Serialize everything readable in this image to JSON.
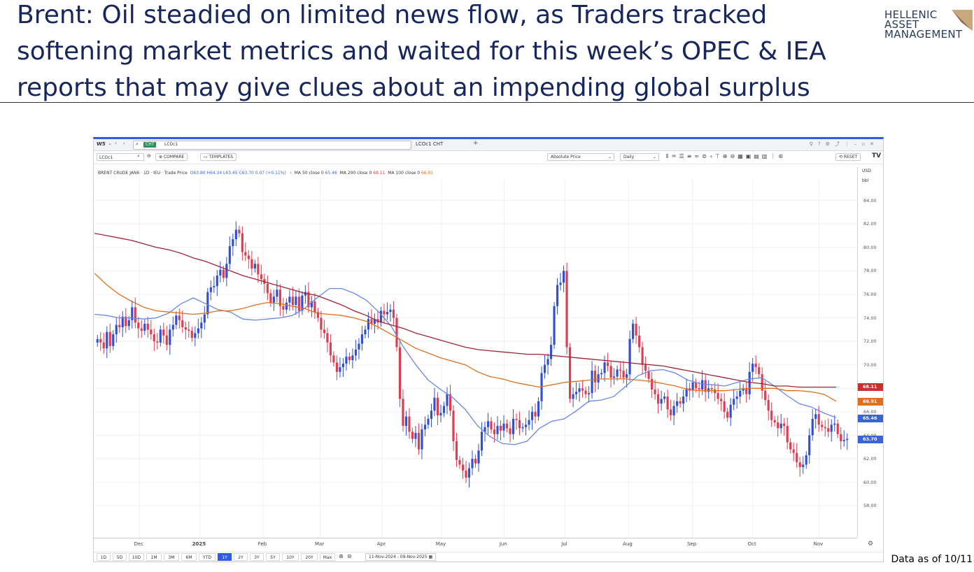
{
  "slide": {
    "title_line1": "Brent: Oil steadied on limited news flow, as Traders tracked",
    "title_line2": "softening market metrics and waited for this week’s OPEC & IEA",
    "title_line3": "reports that may give clues about an impending global surplus",
    "logo_line1": "HELLENIC",
    "logo_line2": "ASSET",
    "logo_line3": "MANAGEMENT",
    "footnote": "Data as of 10/11"
  },
  "app": {
    "workspace": "W5",
    "url_tag": "CHT",
    "url_ric": "LCOc1",
    "tab_title": "LCOc1 CHT",
    "symbol_input": "LCOc1",
    "compare_label": "COMPARE",
    "templates_label": "TEMPLATES",
    "price_type": "Absolute Price",
    "interval": "Daily",
    "reset_label": "RESET",
    "tv_logo": "TV",
    "currency": "USD",
    "unit": "bbl",
    "legend": {
      "instrument": "BRENT CRUDE JAN6 · 1D · IEU · Trade Price",
      "ohlc": "O63.80 H64.34 L63.45 C63.70 0.07 (+0.11%)",
      "ma50_label": "MA 50 close 0",
      "ma50_value": "65.46",
      "ma200_label": "MA 200 close 0",
      "ma200_value": "68.11",
      "ma100_label": "MA 100 close 0",
      "ma100_value": "66.91"
    },
    "range_buttons": [
      "1D",
      "5D",
      "10D",
      "1M",
      "3M",
      "6M",
      "YTD",
      "1Y",
      "2Y",
      "3Y",
      "5Y",
      "10Y",
      "20Y",
      "Max"
    ],
    "active_range": "1Y",
    "date_range": "11-Nov-2024 - 09-Nov-2025"
  },
  "chart_data": {
    "type": "line",
    "title": "",
    "xlabel": "",
    "ylabel": "",
    "ylim": [
      56,
      86
    ],
    "yticks": [
      "84.00",
      "82.00",
      "80.00",
      "78.00",
      "76.00",
      "74.00",
      "72.00",
      "70.00",
      "68.00",
      "66.00",
      "64.00",
      "62.00",
      "60.00",
      "58.00"
    ],
    "xticks": [
      {
        "label": "Dec",
        "bold": false,
        "frac": 0.059
      },
      {
        "label": "2025",
        "bold": true,
        "frac": 0.138
      },
      {
        "label": "Feb",
        "bold": false,
        "frac": 0.221
      },
      {
        "label": "Mar",
        "bold": false,
        "frac": 0.296
      },
      {
        "label": "Apr",
        "bold": false,
        "frac": 0.377
      },
      {
        "label": "May",
        "bold": false,
        "frac": 0.455
      },
      {
        "label": "Jun",
        "bold": false,
        "frac": 0.537
      },
      {
        "label": "Jul",
        "bold": false,
        "frac": 0.617
      },
      {
        "label": "Aug",
        "bold": false,
        "frac": 0.7
      },
      {
        "label": "Sep",
        "bold": false,
        "frac": 0.784
      },
      {
        "label": "Oct",
        "bold": false,
        "frac": 0.863
      },
      {
        "label": "Nov",
        "bold": false,
        "frac": 0.95
      }
    ],
    "candle_closes": [
      72.2,
      71.9,
      71.4,
      72.8,
      71.6,
      72.6,
      73.4,
      73.2,
      74.1,
      73.3,
      73.8,
      74.9,
      73.6,
      73.1,
      72.9,
      73.5,
      73.0,
      72.6,
      72.0,
      71.9,
      73.0,
      72.5,
      71.7,
      73.0,
      73.4,
      74.2,
      73.8,
      73.2,
      73.0,
      72.9,
      72.3,
      72.7,
      73.1,
      73.6,
      74.3,
      76.2,
      76.6,
      76.7,
      77.6,
      78.1,
      77.4,
      78.6,
      80.1,
      80.7,
      81.5,
      81.2,
      79.6,
      79.3,
      79.0,
      78.2,
      78.6,
      77.7,
      77.3,
      76.9,
      76.1,
      75.3,
      75.8,
      76.4,
      75.0,
      74.7,
      75.3,
      75.8,
      75.1,
      75.8,
      74.6,
      75.9,
      76.2,
      74.9,
      75.4,
      74.5,
      74.0,
      73.0,
      72.7,
      71.9,
      70.8,
      70.2,
      69.4,
      69.8,
      70.1,
      70.7,
      70.4,
      70.8,
      71.3,
      71.8,
      72.6,
      73.0,
      73.9,
      73.5,
      73.9,
      73.6,
      74.6,
      74.3,
      74.5,
      74.7,
      74.0,
      71.5,
      67.1,
      64.8,
      65.6,
      64.3,
      63.7,
      64.2,
      62.8,
      64.5,
      64.9,
      65.4,
      66.1,
      67.2,
      65.7,
      65.9,
      66.5,
      67.5,
      66.1,
      63.5,
      61.9,
      61.5,
      61.0,
      60.4,
      61.2,
      62.0,
      61.6,
      62.7,
      64.3,
      64.7,
      65.2,
      64.5,
      64.1,
      64.8,
      64.4,
      65.0,
      64.6,
      64.1,
      65.4,
      65.3,
      64.6,
      64.7,
      64.9,
      65.3,
      66.0,
      65.6,
      66.9,
      69.3,
      70.0,
      70.5,
      71.7,
      75.0,
      76.8,
      77.0,
      78.0,
      71.5,
      67.1,
      67.5,
      67.7,
      68.0,
      67.8,
      67.5,
      67.6,
      69.5,
      68.5,
      69.2,
      69.3,
      70.2,
      69.9,
      68.9,
      69.0,
      69.6,
      69.5,
      68.9,
      69.2,
      72.2,
      73.5,
      72.5,
      71.5,
      70.0,
      69.5,
      68.8,
      67.9,
      67.5,
      66.7,
      67.1,
      67.3,
      66.2,
      65.7,
      66.5,
      66.9,
      66.7,
      67.3,
      68.0,
      67.8,
      68.5,
      68.0,
      67.9,
      68.7,
      67.7,
      68.0,
      67.9,
      67.6,
      67.1,
      66.9,
      66.0,
      65.5,
      66.6,
      67.1,
      67.3,
      67.8,
      68.0,
      67.5,
      69.4,
      70.1,
      69.8,
      69.2,
      67.8,
      67.0,
      66.1,
      65.3,
      65.1,
      64.6,
      65.0,
      64.8,
      63.4,
      62.8,
      62.5,
      61.7,
      61.3,
      61.5,
      62.3,
      64.0,
      65.4,
      65.8,
      64.9,
      64.7,
      64.6,
      64.3,
      64.9,
      65.0,
      64.1,
      63.5,
      63.6,
      63.7
    ],
    "series": [
      {
        "name": "MA 50 close 0",
        "color": "#6a86e8",
        "values": [
          74.3,
          74.2,
          74.0,
          74.0,
          73.9,
          74.0,
          74.4,
          75.2,
          75.7,
          75.2,
          74.7,
          74.5,
          73.9,
          73.8,
          73.9,
          74.0,
          74.2,
          74.8,
          75.7,
          76.5,
          76.5,
          76.1,
          75.5,
          74.5,
          73.3,
          71.5,
          70.0,
          68.7,
          67.9,
          67.2,
          66.2,
          64.8,
          63.9,
          63.3,
          63.2,
          63.5,
          64.6,
          65.2,
          65.4,
          66.1,
          66.9,
          67.0,
          67.3,
          68.2,
          69.1,
          69.5,
          69.6,
          69.3,
          68.7,
          68.4,
          68.3,
          68.2,
          68.5,
          68.8,
          68.9,
          68.2,
          67.4,
          66.7,
          66.4,
          65.9,
          65.5
        ]
      },
      {
        "name": "MA 100 close 0",
        "color": "#e0701e",
        "values": [
          77.8,
          76.8,
          76.0,
          75.4,
          74.9,
          74.6,
          74.5,
          74.4,
          74.3,
          74.4,
          74.6,
          74.6,
          74.8,
          75.1,
          75.3,
          75.2,
          75.0,
          74.8,
          74.4,
          74.3,
          74.2,
          74.0,
          73.7,
          73.2,
          72.6,
          72.0,
          71.4,
          71.0,
          70.6,
          70.3,
          70.0,
          69.4,
          69.0,
          68.8,
          68.5,
          68.3,
          68.1,
          68.3,
          68.5,
          68.6,
          68.7,
          68.8,
          68.8,
          68.8,
          68.7,
          68.6,
          68.4,
          68.2,
          67.9,
          67.8,
          67.8,
          67.8,
          67.9,
          68.0,
          68.0,
          68.0,
          67.8,
          67.8,
          67.7,
          67.5,
          66.9
        ]
      },
      {
        "name": "MA 200 close 0",
        "color": "#a02335",
        "values": [
          81.2,
          81.0,
          80.8,
          80.6,
          80.3,
          80.0,
          79.8,
          79.5,
          79.1,
          78.8,
          78.4,
          78.0,
          77.6,
          77.3,
          77.0,
          76.7,
          76.4,
          76.1,
          75.9,
          75.5,
          75.1,
          74.6,
          74.2,
          73.7,
          73.4,
          73.1,
          72.7,
          72.4,
          72.1,
          71.8,
          71.5,
          71.3,
          71.2,
          71.1,
          71.0,
          70.9,
          70.9,
          70.8,
          70.7,
          70.6,
          70.5,
          70.4,
          70.3,
          70.2,
          70.1,
          70.0,
          69.9,
          69.7,
          69.5,
          69.3,
          69.1,
          68.9,
          68.7,
          68.5,
          68.4,
          68.2,
          68.2,
          68.1,
          68.1,
          68.1,
          68.1
        ]
      }
    ],
    "price_tags": [
      {
        "label": "68.11",
        "value": 68.11,
        "color": "#c7312f"
      },
      {
        "label": "66.91",
        "value": 66.91,
        "color": "#e0701e"
      },
      {
        "label": "65.46",
        "value": 65.46,
        "color": "#3b63d8"
      },
      {
        "label": "63.70",
        "value": 63.7,
        "color": "#3b63d8"
      }
    ],
    "colors": {
      "up": "#2e4fd6",
      "down": "#e03b4f",
      "grid": "#eef0f3"
    }
  }
}
